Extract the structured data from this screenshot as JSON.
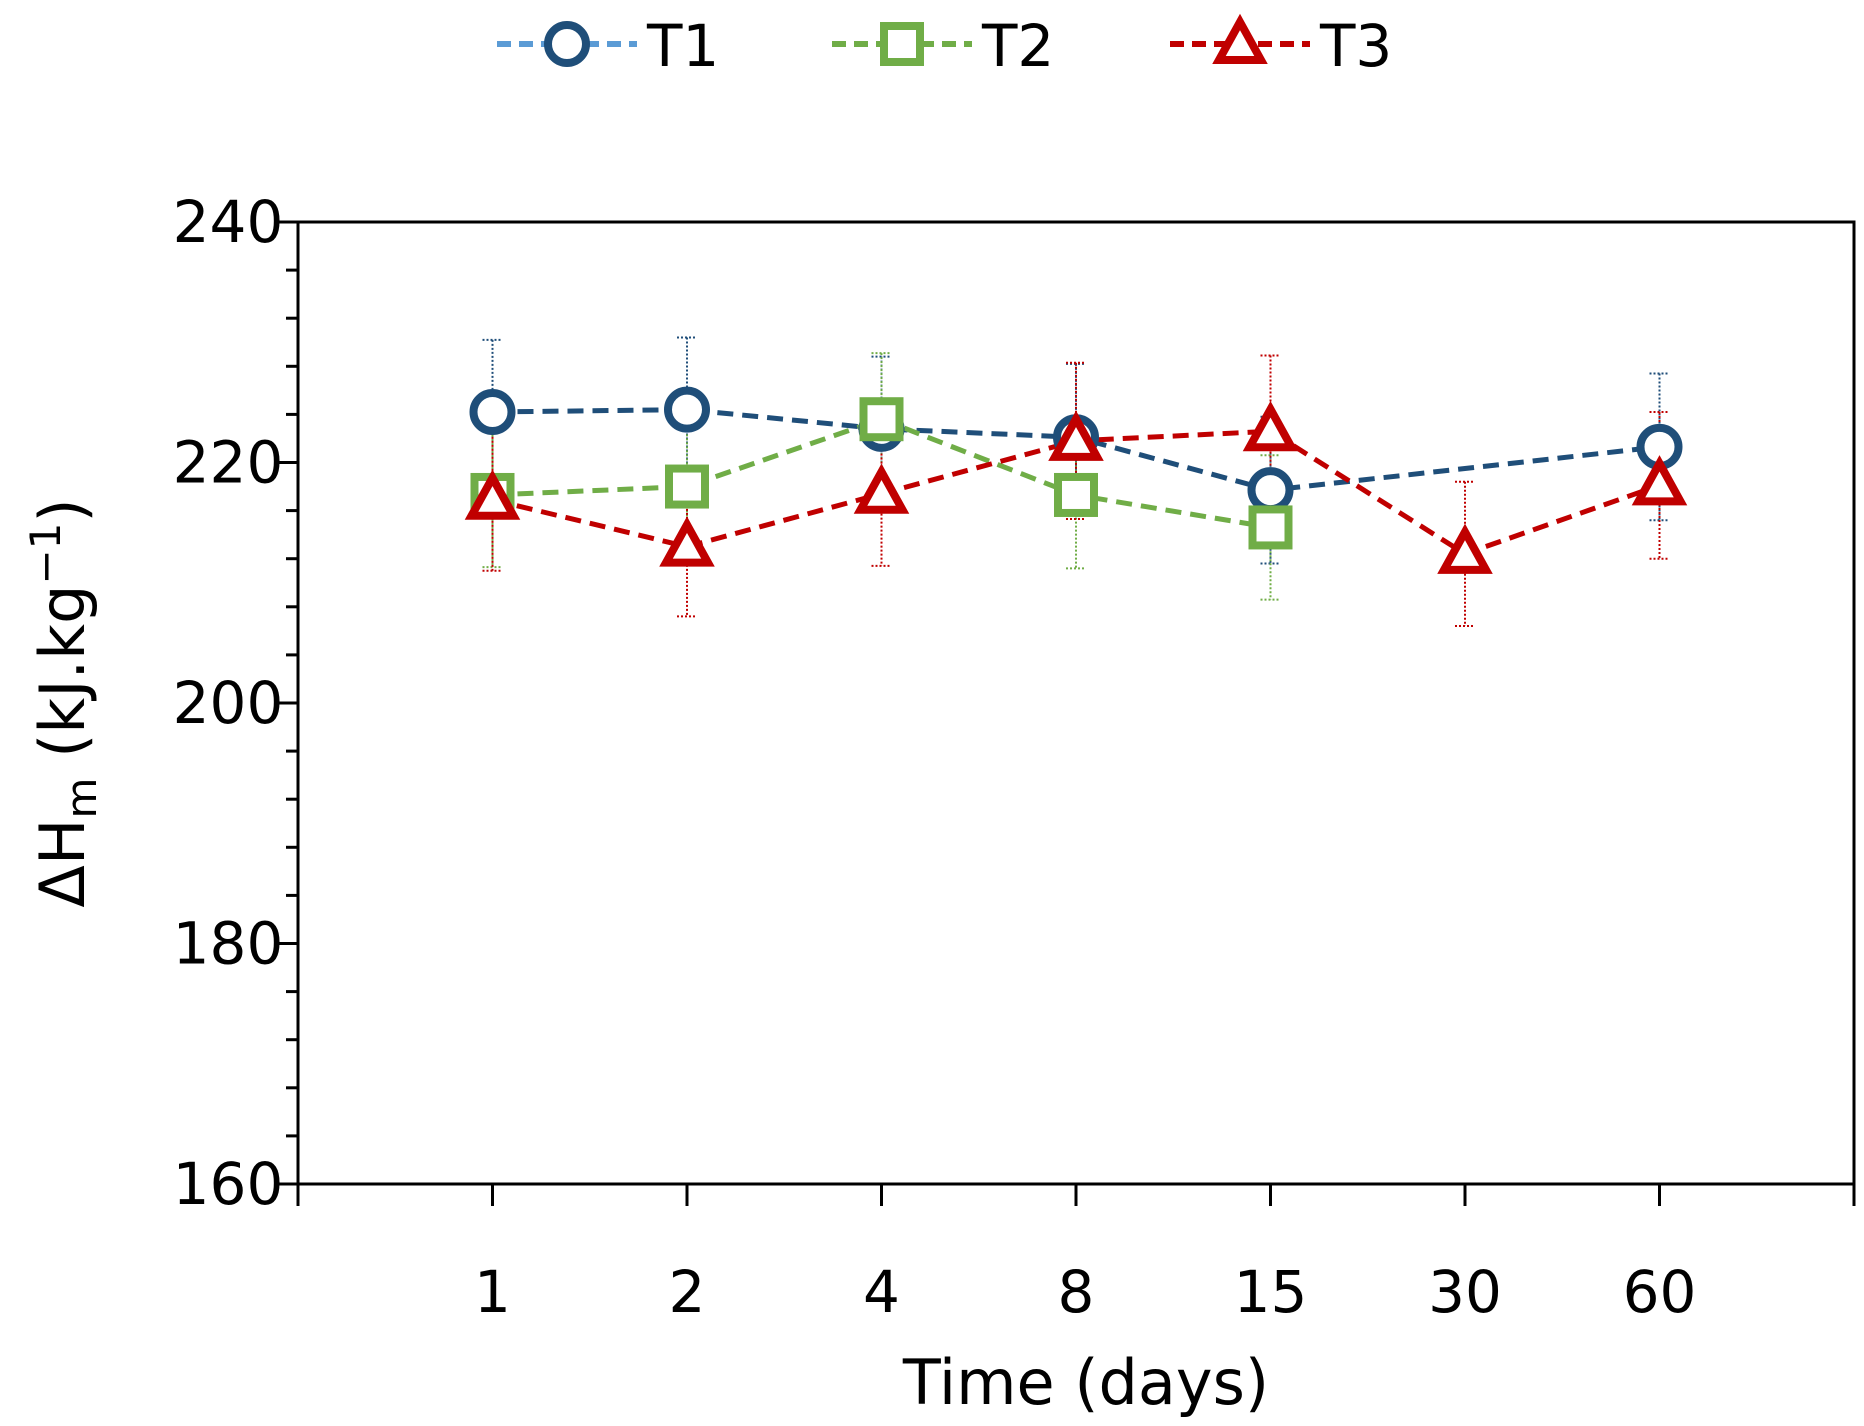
{
  "chart_data": {
    "type": "line",
    "x_categories": [
      "1",
      "2",
      "4",
      "8",
      "15",
      "30",
      "60"
    ],
    "xlabel": "Time (days)",
    "ylabel_main": "ΔH",
    "ylabel_sub": "m",
    "ylabel_unit": " (kJ.kg",
    "ylabel_sup": "−1",
    "ylabel_close": ")",
    "ylim": [
      160,
      240
    ],
    "yticks": [
      160,
      180,
      200,
      220,
      240
    ],
    "y_minor_step": 4,
    "legend_position": "top-center",
    "series": [
      {
        "name": "T1",
        "marker": "circle",
        "color": "#1f4e79",
        "legend_line_color": "#5b9bd5",
        "values": [
          224.2,
          224.4,
          222.8,
          222.1,
          217.7,
          null,
          221.3
        ],
        "errors": [
          6.0,
          6.0,
          6.0,
          6.1,
          6.1,
          null,
          6.1
        ],
        "line_points": [
          [
            0,
            224.2
          ],
          [
            1,
            224.4
          ],
          [
            2,
            222.8
          ],
          [
            3,
            222.1
          ],
          [
            4,
            217.7
          ],
          [
            6,
            221.3
          ]
        ]
      },
      {
        "name": "T2",
        "marker": "square",
        "color": "#70ad47",
        "legend_line_color": "#70ad47",
        "values": [
          217.3,
          218.0,
          223.6,
          217.3,
          214.6,
          null,
          null
        ],
        "errors": [
          6.0,
          6.0,
          5.5,
          6.1,
          6.0,
          null,
          null
        ],
        "line_points": [
          [
            0,
            217.3
          ],
          [
            1,
            218.0
          ],
          [
            2,
            223.6
          ],
          [
            3,
            217.3
          ],
          [
            4,
            214.6
          ]
        ]
      },
      {
        "name": "T3",
        "marker": "triangle",
        "color": "#c00000",
        "legend_line_color": "#c00000",
        "values": [
          216.9,
          213.0,
          217.4,
          221.8,
          222.6,
          212.4,
          218.1
        ],
        "errors": [
          5.9,
          5.8,
          6.0,
          6.5,
          6.3,
          6.0,
          6.1
        ],
        "line_points": [
          [
            0,
            216.9
          ],
          [
            1,
            213.0
          ],
          [
            2,
            217.4
          ],
          [
            3,
            221.8
          ],
          [
            4,
            222.6
          ],
          [
            5,
            212.4
          ],
          [
            6,
            218.1
          ]
        ]
      }
    ]
  }
}
